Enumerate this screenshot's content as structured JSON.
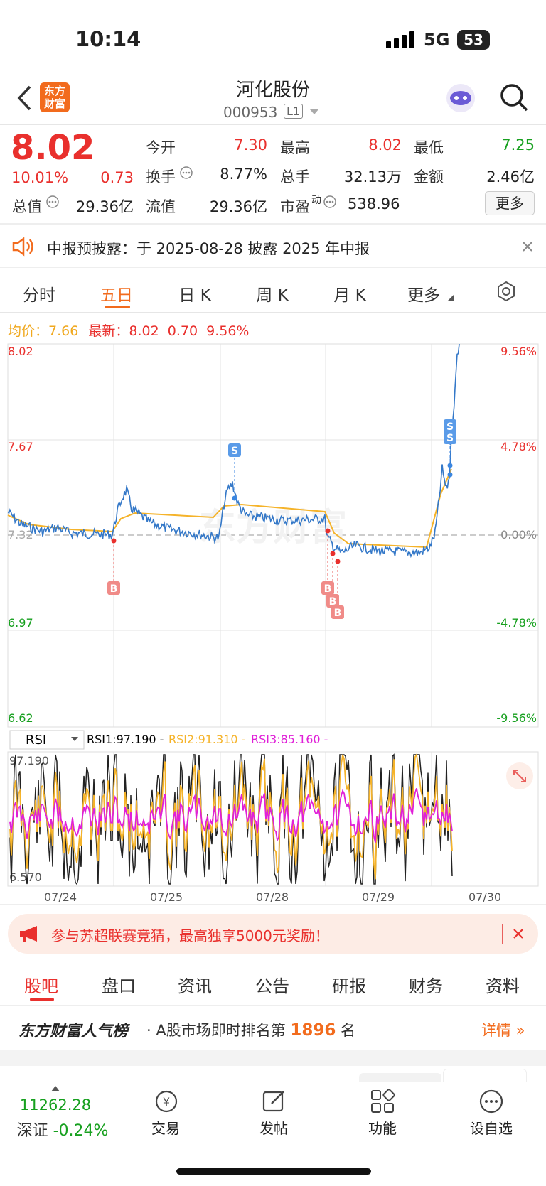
{
  "status_bar": {
    "time": "10:14",
    "network": "5G",
    "battery": "53"
  },
  "header": {
    "logo": [
      "东方",
      "财富"
    ],
    "title": "河化股份",
    "code": "000953",
    "badge": "L1"
  },
  "quote": {
    "price": "8.02",
    "change_pct": "10.01%",
    "change": "0.73",
    "stats": [
      [
        {
          "label": "今开",
          "value": "7.30"
        },
        {
          "label": "最高",
          "value": "8.02"
        },
        {
          "label": "最低",
          "value": "7.25"
        }
      ],
      [
        {
          "label": "换手",
          "value": "8.77%"
        },
        {
          "label": "总手",
          "value": "32.13万"
        },
        {
          "label": "金额",
          "value": "2.46亿"
        }
      ],
      [
        {
          "label": "总值",
          "value": "29.36亿"
        },
        {
          "label": "流值",
          "value": "29.36亿"
        },
        {
          "label": "市盈",
          "sup": "动",
          "value": "538.96"
        }
      ]
    ],
    "more": "更多"
  },
  "notice": {
    "text": "中报预披露：于 2025-08-28 披露 2025 年中报"
  },
  "chart_tabs": [
    "分时",
    "五日",
    "日 K",
    "周 K",
    "月 K",
    "更多"
  ],
  "chart": {
    "avg_label": "均价：",
    "avg": "7.66",
    "latest_label": "最新：",
    "latest": "8.02",
    "latest_change": "0.70",
    "latest_pct": "9.56%",
    "left_labels": [
      "8.02",
      "7.67",
      "7.32",
      "6.97",
      "6.62"
    ],
    "right_labels": [
      "9.56%",
      "4.78%",
      "0.00%",
      "-4.78%",
      "-9.56%"
    ],
    "watermark": "东方财富",
    "rsi": {
      "selector": "RSI",
      "rsi1": "RSI1:97.190 -",
      "rsi2": "RSI2:91.310 -",
      "rsi3": "RSI3:85.160 -",
      "top": "97.190",
      "bottom": "6.570"
    },
    "dates": [
      "07/24",
      "07/25",
      "07/28",
      "07/29",
      "07/30"
    ]
  },
  "banner": {
    "text": "参与苏超联赛竞猜，最高独享5000元奖励！"
  },
  "tabs": [
    "股吧",
    "盘口",
    "资讯",
    "公告",
    "研报",
    "财务",
    "资料"
  ],
  "ranking": {
    "brand": "东方财富人气榜",
    "text": "· A股市场即时排名第",
    "rank": "1896",
    "unit": "名",
    "link": "详情"
  },
  "nav": {
    "index": "11262.28",
    "index_name": "深证",
    "index_change": "-0.24%",
    "items": [
      "交易",
      "发帖",
      "功能",
      "设自选"
    ]
  }
}
